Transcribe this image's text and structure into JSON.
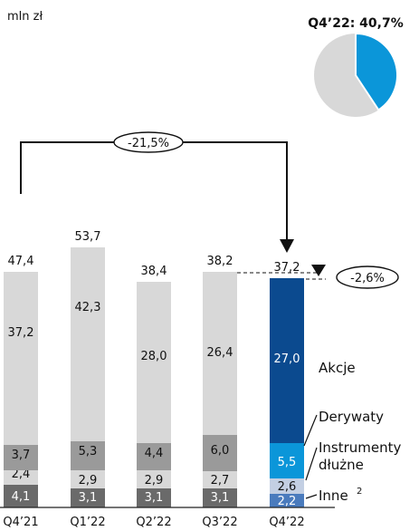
{
  "chart_data": {
    "type": "bar",
    "unit_label": "mln zł",
    "categories": [
      "Q4’21",
      "Q1’22",
      "Q2’22",
      "Q3’22",
      "Q4’22"
    ],
    "totals": [
      "47,4",
      "53,7",
      "38,4",
      "38,2",
      "37,2"
    ],
    "series": [
      {
        "name": "Inne",
        "values": [
          4.1,
          3.1,
          3.1,
          3.1,
          2.2
        ],
        "labels": [
          "4,1",
          "3,1",
          "3,1",
          "3,1",
          "2,2"
        ],
        "colors": [
          "#6a6a6a",
          "#6a6a6a",
          "#6a6a6a",
          "#6a6a6a",
          "#4a7bbd"
        ]
      },
      {
        "name": "Instrumenty dłużne",
        "values": [
          2.4,
          2.9,
          2.9,
          2.7,
          2.6
        ],
        "labels": [
          "2,4",
          "2,9",
          "2,9",
          "2,7",
          "2,6"
        ],
        "colors": [
          "#d8d8d8",
          "#d8d8d8",
          "#d8d8d8",
          "#d8d8d8",
          "#c3cfe3"
        ]
      },
      {
        "name": "Derywaty",
        "values": [
          3.7,
          5.3,
          4.4,
          6.0,
          5.5
        ],
        "labels": [
          "3,7",
          "5,3",
          "4,4",
          "6,0",
          "5,5"
        ],
        "colors": [
          "#9a9a9a",
          "#9a9a9a",
          "#9a9a9a",
          "#9a9a9a",
          "#0b96d9"
        ]
      },
      {
        "name": "Akcje",
        "values": [
          37.2,
          42.3,
          28.0,
          26.4,
          27.0
        ],
        "labels": [
          "37,2",
          "42,3",
          "28,0",
          "26,4",
          "27,0"
        ],
        "colors": [
          "#d8d8d8",
          "#d8d8d8",
          "#d8d8d8",
          "#d8d8d8",
          "#0b4a8f"
        ]
      }
    ],
    "legend": {
      "akcje": "Akcje",
      "derywaty": "Derywaty",
      "instrumenty_line1": "Instrumenty",
      "instrumenty_line2": "dłużne",
      "inne": "Inne",
      "inne_sup": "2"
    },
    "annotations": {
      "yoy_change": "-21,5%",
      "qoq_change": "-2,6%"
    },
    "pie": {
      "title": "Q4’22: 40,7%",
      "share": 0.407,
      "color_share": "#0b96d9",
      "color_rest": "#d8d8d8"
    },
    "colors": {
      "text_on_light": "#111111",
      "text_on_dark": "#ffffff"
    }
  }
}
